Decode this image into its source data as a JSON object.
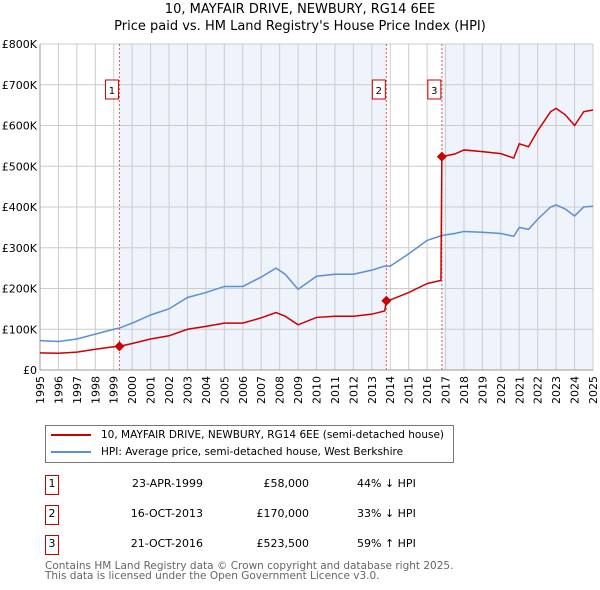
{
  "chart_data": {
    "type": "line",
    "title": "10, MAYFAIR DRIVE, NEWBURY, RG14 6EE",
    "subtitle": "Price paid vs. HM Land Registry's House Price Index (HPI)",
    "xlim": [
      1995,
      2025
    ],
    "ylim": [
      0,
      800000
    ],
    "x_ticks": [
      "1995",
      "1996",
      "1997",
      "1998",
      "1999",
      "2000",
      "2001",
      "2002",
      "2003",
      "2004",
      "2005",
      "2006",
      "2007",
      "2008",
      "2009",
      "2010",
      "2011",
      "2012",
      "2013",
      "2014",
      "2015",
      "2016",
      "2017",
      "2018",
      "2019",
      "2020",
      "2021",
      "2022",
      "2023",
      "2024",
      "2025"
    ],
    "y_ticks": [
      {
        "v": 0,
        "label": "£0"
      },
      {
        "v": 100000,
        "label": "£100K"
      },
      {
        "v": 200000,
        "label": "£200K"
      },
      {
        "v": 300000,
        "label": "£300K"
      },
      {
        "v": 400000,
        "label": "£400K"
      },
      {
        "v": 500000,
        "label": "£500K"
      },
      {
        "v": 600000,
        "label": "£600K"
      },
      {
        "v": 700000,
        "label": "£700K"
      },
      {
        "v": 800000,
        "label": "£800K"
      }
    ],
    "grid": true,
    "series": [
      {
        "name": "10, MAYFAIR DRIVE, NEWBURY, RG14 6EE (semi-detached house)",
        "color": "#cc0000",
        "points": [
          [
            1995,
            42000
          ],
          [
            1996,
            41000
          ],
          [
            1997,
            44000
          ],
          [
            1998,
            51000
          ],
          [
            1999,
            57000
          ],
          [
            1999.31,
            58000
          ],
          [
            2000,
            65000
          ],
          [
            2001,
            76000
          ],
          [
            2002,
            84000
          ],
          [
            2003,
            100000
          ],
          [
            2004,
            107000
          ],
          [
            2005,
            115000
          ],
          [
            2006,
            115000
          ],
          [
            2007,
            128000
          ],
          [
            2007.8,
            141000
          ],
          [
            2008.3,
            132000
          ],
          [
            2009,
            111000
          ],
          [
            2010,
            129000
          ],
          [
            2011,
            132000
          ],
          [
            2012,
            132000
          ],
          [
            2013,
            137000
          ],
          [
            2013.7,
            145000
          ],
          [
            2013.79,
            170000
          ],
          [
            2014,
            172000
          ],
          [
            2015,
            190000
          ],
          [
            2016,
            212000
          ],
          [
            2016.75,
            220000
          ],
          [
            2016.8,
            523500
          ],
          [
            2017.5,
            530000
          ],
          [
            2018,
            540000
          ],
          [
            2019,
            536000
          ],
          [
            2020,
            531000
          ],
          [
            2020.7,
            520000
          ],
          [
            2021,
            555000
          ],
          [
            2021.5,
            548000
          ],
          [
            2022,
            587000
          ],
          [
            2022.7,
            634000
          ],
          [
            2023,
            642000
          ],
          [
            2023.5,
            626000
          ],
          [
            2024,
            600000
          ],
          [
            2024.5,
            634000
          ],
          [
            2025,
            638000
          ]
        ]
      },
      {
        "name": "HPI: Average price, semi-detached house, West Berkshire",
        "color": "#5b8fd4",
        "points": [
          [
            1995,
            72000
          ],
          [
            1996,
            70000
          ],
          [
            1997,
            76000
          ],
          [
            1998,
            88000
          ],
          [
            1999,
            100000
          ],
          [
            1999.31,
            103000
          ],
          [
            2000,
            115000
          ],
          [
            2001,
            135000
          ],
          [
            2002,
            150000
          ],
          [
            2003,
            178000
          ],
          [
            2004,
            190000
          ],
          [
            2005,
            205000
          ],
          [
            2006,
            205000
          ],
          [
            2007,
            228000
          ],
          [
            2007.8,
            250000
          ],
          [
            2008.3,
            235000
          ],
          [
            2009,
            198000
          ],
          [
            2010,
            230000
          ],
          [
            2011,
            235000
          ],
          [
            2012,
            235000
          ],
          [
            2013,
            245000
          ],
          [
            2013.7,
            255000
          ],
          [
            2014,
            255000
          ],
          [
            2015,
            285000
          ],
          [
            2016,
            318000
          ],
          [
            2016.8,
            330000
          ],
          [
            2017.5,
            335000
          ],
          [
            2018,
            340000
          ],
          [
            2019,
            338000
          ],
          [
            2020,
            335000
          ],
          [
            2020.7,
            328000
          ],
          [
            2021,
            350000
          ],
          [
            2021.5,
            345000
          ],
          [
            2022,
            370000
          ],
          [
            2022.7,
            400000
          ],
          [
            2023,
            405000
          ],
          [
            2023.5,
            395000
          ],
          [
            2024,
            378000
          ],
          [
            2024.5,
            400000
          ],
          [
            2025,
            402000
          ]
        ]
      }
    ],
    "sales": [
      {
        "label": "1",
        "x": 1999.31,
        "price": 58000,
        "date": "23-APR-1999",
        "price_text": "£58,000",
        "hpi_text": "44% ↓ HPI"
      },
      {
        "label": "2",
        "x": 2013.79,
        "price": 170000,
        "date": "16-OCT-2013",
        "price_text": "£170,000",
        "hpi_text": "33% ↓ HPI"
      },
      {
        "label": "3",
        "x": 2016.8,
        "price": 523500,
        "date": "21-OCT-2016",
        "price_text": "£523,500",
        "hpi_text": "59% ↑ HPI"
      }
    ],
    "shade_color": "#eef3fc",
    "legend_position": "below"
  },
  "footer": {
    "line1": "Contains HM Land Registry data © Crown copyright and database right 2025.",
    "line2": "This data is licensed under the Open Government Licence v3.0."
  }
}
